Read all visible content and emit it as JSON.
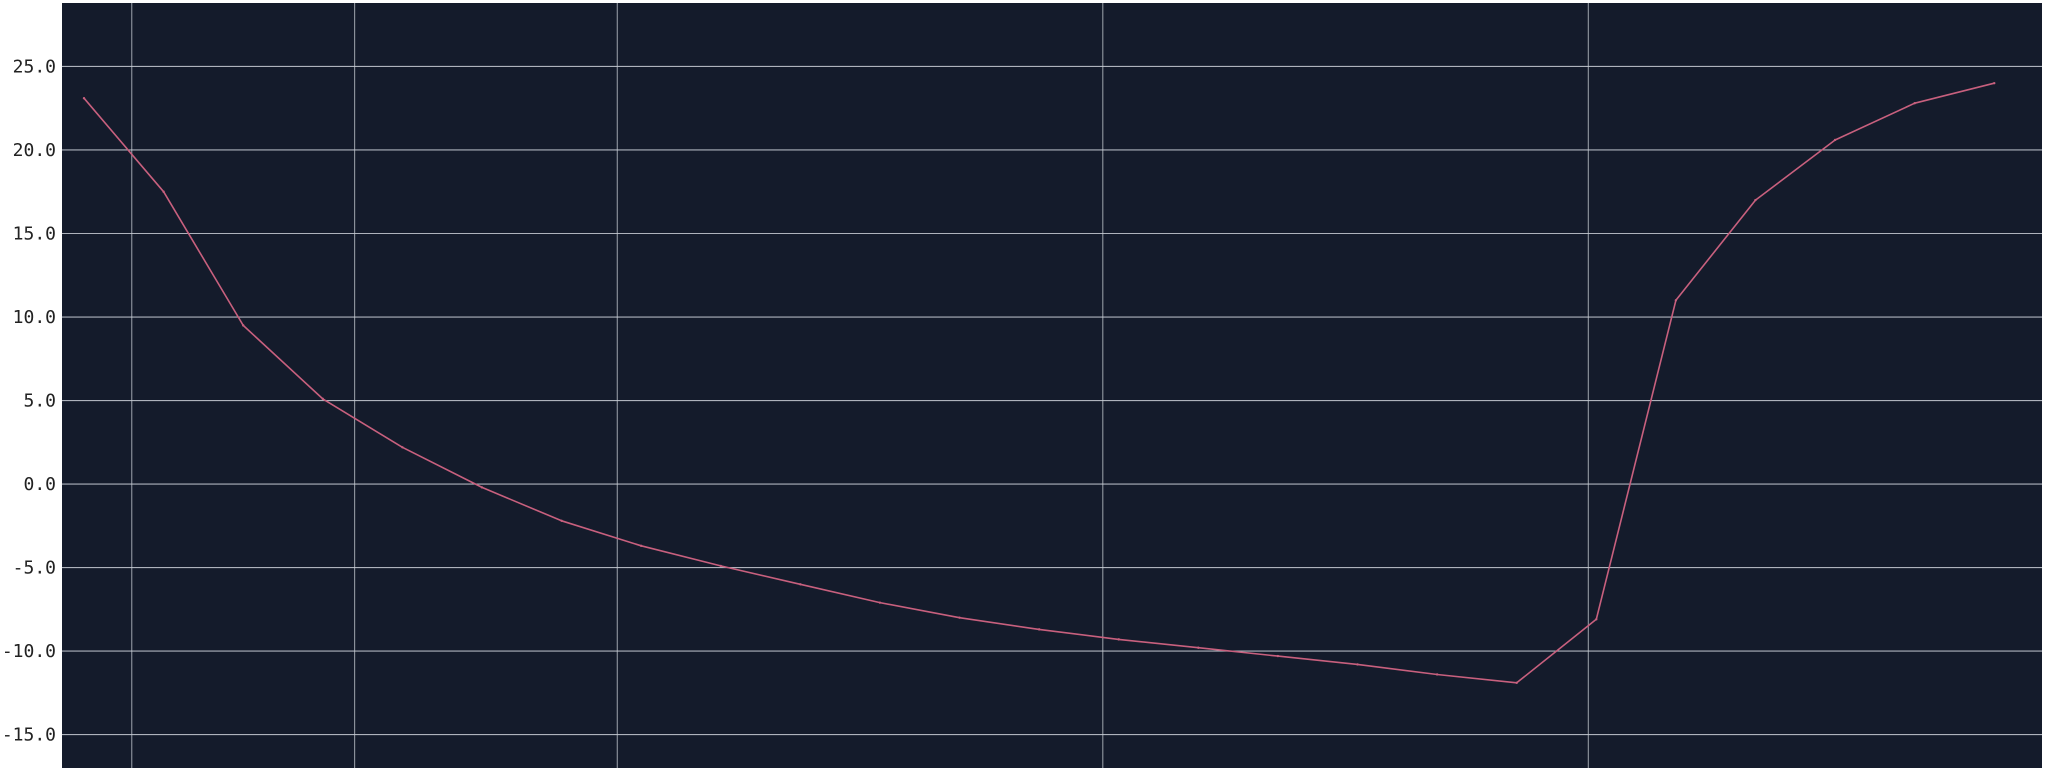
{
  "chart_data": {
    "type": "line",
    "title": "",
    "xlabel": "",
    "ylabel": "",
    "ylim": [
      -17.0,
      28.8
    ],
    "yticks": [
      "25.0",
      "20.0",
      "15.0",
      "10.0",
      "5.0",
      "0.0",
      "-5.0",
      "-10.0",
      "-15.0"
    ],
    "ytick_values": [
      25,
      20,
      15,
      10,
      5,
      0,
      -5,
      -10,
      -15
    ],
    "xlim": [
      0,
      24.6
    ],
    "vertical_gridlines_x": [
      0.6,
      3.4,
      6.7,
      12.8,
      18.9
    ],
    "grid": true,
    "legend": "none",
    "series": [
      {
        "color": "#c8607e",
        "x": [
          0,
          1,
          2,
          3,
          4,
          5,
          6,
          7,
          8,
          9,
          10,
          11,
          12,
          13,
          14,
          15,
          16,
          17,
          18,
          19,
          20,
          21,
          22,
          23,
          24
        ],
        "values": [
          23.1,
          17.5,
          9.5,
          5.1,
          2.2,
          -0.2,
          -2.2,
          -3.7,
          -4.9,
          -6.0,
          -7.1,
          -8.0,
          -8.7,
          -9.3,
          -9.8,
          -10.3,
          -10.8,
          -11.4,
          -11.9,
          -8.1,
          11.0,
          17.0,
          20.6,
          22.8,
          24.0
        ]
      }
    ],
    "colors": {
      "plot_background": "#141b2b",
      "grid": "#c9ced6",
      "line": "#c8607e",
      "tick_text": "#222222"
    }
  }
}
